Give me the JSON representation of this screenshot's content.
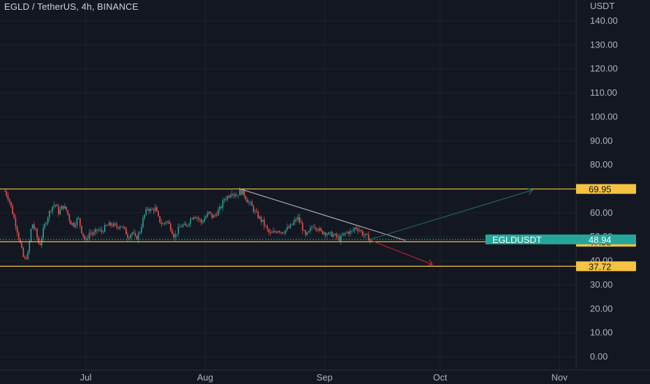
{
  "header": {
    "title": "EGLD / TetherUS, 4h, BINANCE"
  },
  "chart_data": {
    "type": "candlestick",
    "currency_label": "USDT",
    "y_ticks": [
      0,
      10,
      20,
      30,
      40,
      50,
      60,
      70,
      80,
      90,
      100,
      110,
      120,
      130,
      140
    ],
    "x_ticks": [
      "Jul",
      "Aug",
      "Sep",
      "Oct",
      "Nov"
    ],
    "ylim": [
      0,
      145
    ],
    "horizontal_levels": [
      {
        "value": 69.95,
        "label": "69.95",
        "color": "#f5c242"
      },
      {
        "value": 47.95,
        "label": "47.95",
        "color": "#f5c242"
      },
      {
        "value": 37.72,
        "label": "37.72",
        "color": "#f5c242"
      }
    ],
    "last_price": {
      "symbol": "EGLDUSDT",
      "value": "48.94",
      "color": "#26a69a"
    },
    "price_path": [
      [
        "2023-06-10",
        69
      ],
      [
        "2023-06-11",
        66
      ],
      [
        "2023-06-12",
        60
      ],
      [
        "2023-06-13",
        54
      ],
      [
        "2023-06-14",
        47
      ],
      [
        "2023-06-15",
        40
      ],
      [
        "2023-06-16",
        43
      ],
      [
        "2023-06-17",
        56
      ],
      [
        "2023-06-18",
        52
      ],
      [
        "2023-06-19",
        46
      ],
      [
        "2023-06-20",
        53
      ],
      [
        "2023-06-21",
        58
      ],
      [
        "2023-06-22",
        62
      ],
      [
        "2023-06-23",
        64
      ],
      [
        "2023-06-24",
        60
      ],
      [
        "2023-06-25",
        63
      ],
      [
        "2023-06-26",
        61
      ],
      [
        "2023-06-27",
        56
      ],
      [
        "2023-06-28",
        55
      ],
      [
        "2023-06-29",
        58
      ],
      [
        "2023-06-30",
        52
      ],
      [
        "2023-07-01",
        48
      ],
      [
        "2023-07-02",
        52
      ],
      [
        "2023-07-03",
        51
      ],
      [
        "2023-07-04",
        53
      ],
      [
        "2023-07-05",
        52
      ],
      [
        "2023-07-06",
        54
      ],
      [
        "2023-07-07",
        55
      ],
      [
        "2023-07-08",
        55
      ],
      [
        "2023-07-09",
        54
      ],
      [
        "2023-07-10",
        55
      ],
      [
        "2023-07-11",
        53
      ],
      [
        "2023-07-12",
        50
      ],
      [
        "2023-07-13",
        52
      ],
      [
        "2023-07-14",
        49
      ],
      [
        "2023-07-15",
        52
      ],
      [
        "2023-07-16",
        58
      ],
      [
        "2023-07-17",
        62
      ],
      [
        "2023-07-18",
        61
      ],
      [
        "2023-07-19",
        62
      ],
      [
        "2023-07-20",
        57
      ],
      [
        "2023-07-21",
        55
      ],
      [
        "2023-07-22",
        57
      ],
      [
        "2023-07-23",
        54
      ],
      [
        "2023-07-24",
        50
      ],
      [
        "2023-07-25",
        53
      ],
      [
        "2023-07-26",
        55
      ],
      [
        "2023-07-27",
        54
      ],
      [
        "2023-07-28",
        57
      ],
      [
        "2023-07-29",
        59
      ],
      [
        "2023-07-30",
        58
      ],
      [
        "2023-07-31",
        56
      ],
      [
        "2023-08-01",
        58
      ],
      [
        "2023-08-02",
        60
      ],
      [
        "2023-08-03",
        58
      ],
      [
        "2023-08-04",
        60
      ],
      [
        "2023-08-05",
        62
      ],
      [
        "2023-08-06",
        66
      ],
      [
        "2023-08-07",
        67
      ],
      [
        "2023-08-08",
        69
      ],
      [
        "2023-08-09",
        67
      ],
      [
        "2023-08-10",
        69
      ],
      [
        "2023-08-11",
        68
      ],
      [
        "2023-08-12",
        65
      ],
      [
        "2023-08-13",
        63
      ],
      [
        "2023-08-14",
        60
      ],
      [
        "2023-08-15",
        58
      ],
      [
        "2023-08-16",
        56
      ],
      [
        "2023-08-17",
        53
      ],
      [
        "2023-08-18",
        51
      ],
      [
        "2023-08-19",
        52
      ],
      [
        "2023-08-20",
        53
      ],
      [
        "2023-08-21",
        52
      ],
      [
        "2023-08-22",
        53
      ],
      [
        "2023-08-23",
        54
      ],
      [
        "2023-08-24",
        56
      ],
      [
        "2023-08-25",
        58
      ],
      [
        "2023-08-26",
        55
      ],
      [
        "2023-08-27",
        50
      ],
      [
        "2023-08-28",
        52
      ],
      [
        "2023-08-29",
        55
      ],
      [
        "2023-08-30",
        54
      ],
      [
        "2023-08-31",
        52
      ],
      [
        "2023-09-01",
        52
      ],
      [
        "2023-09-02",
        51
      ],
      [
        "2023-09-03",
        51
      ],
      [
        "2023-09-04",
        50
      ],
      [
        "2023-09-05",
        49
      ],
      [
        "2023-09-06",
        51
      ],
      [
        "2023-09-07",
        52
      ],
      [
        "2023-09-08",
        52
      ],
      [
        "2023-09-09",
        54
      ],
      [
        "2023-09-10",
        53
      ],
      [
        "2023-09-11",
        51
      ],
      [
        "2023-09-12",
        50
      ],
      [
        "2023-09-13",
        48.9
      ]
    ],
    "drawings": [
      {
        "type": "trendline",
        "color": "#b2b5be",
        "from": [
          "2023-08-10",
          70
        ],
        "to": [
          "2023-09-22",
          48.5
        ]
      },
      {
        "type": "arrow",
        "color": "#1f6b55",
        "from": [
          "2023-09-13",
          49
        ],
        "to": [
          "2023-10-25",
          69.5
        ]
      },
      {
        "type": "arrow",
        "color": "#c62828",
        "from": [
          "2023-09-13",
          48.5
        ],
        "to": [
          "2023-09-29",
          38.5
        ]
      }
    ]
  }
}
